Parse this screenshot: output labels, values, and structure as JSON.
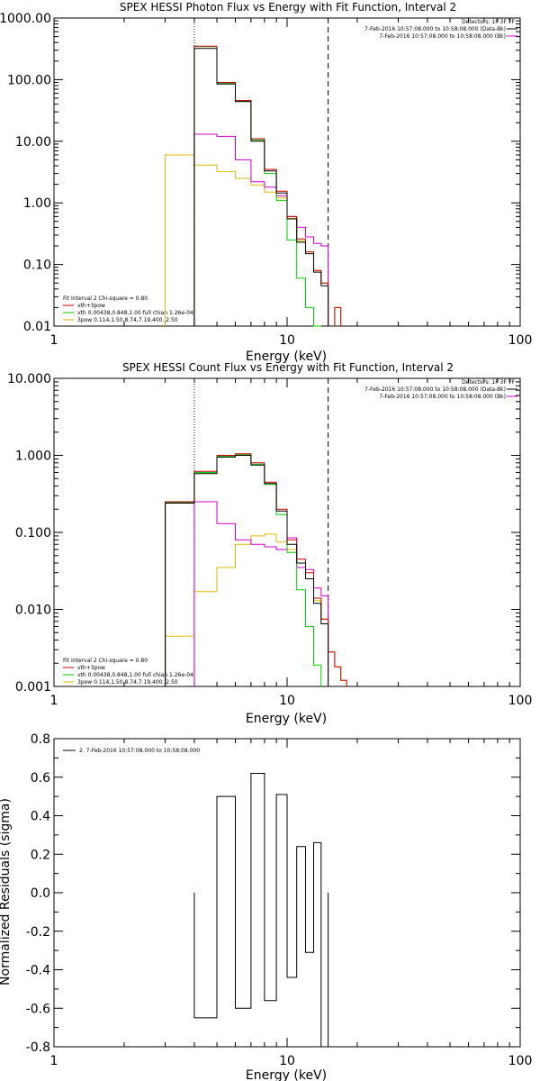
{
  "chart_data": [
    {
      "type": "line",
      "title": "SPEX HESSI Photon Flux vs Energy with Fit Function, Interval 2",
      "xlabel": "Energy (keV)",
      "ylabel": "",
      "xscale": "log",
      "yscale": "log",
      "xlim": [
        1,
        100
      ],
      "ylim": [
        0.01,
        1000
      ],
      "x_tick_labels": [
        "1",
        "10",
        "100"
      ],
      "y_tick_labels": [
        "0.01",
        "0.10",
        "1.00",
        "10.00",
        "100.00",
        "1000.00"
      ],
      "legend_top_right": {
        "header": "Detectors: 1F 3F 7F",
        "entries": [
          {
            "label": "7-Feb-2016 10:57:08.000 to 10:58:08.000 (Data-Bk)",
            "color": "#000000"
          },
          {
            "label": "7-Feb-2016 10:57:08.000 to 10:58:08.000 (Bk)",
            "color": "#cc00cc"
          }
        ]
      },
      "legend_bottom_left": {
        "header": "Fit Interval 2   Chi-square = 0.80",
        "entries": [
          {
            "label": "vth+3pow",
            "color": "#cc0000"
          },
          {
            "label": "vth 0.00438,0.848,1.00  full chian 1.26e-04",
            "color": "#00cc00"
          },
          {
            "label": "3pow 0.114,1.50,8.74,7.19,400.,2.50",
            "color": "#ddbb00"
          }
        ]
      },
      "vlines": [
        {
          "x": 4,
          "style": "dotted",
          "color": "#000000"
        },
        {
          "x": 15,
          "style": "dashed",
          "color": "#000000"
        }
      ],
      "bin_edges": [
        3,
        4,
        5,
        6,
        7,
        8,
        9,
        10,
        11,
        12,
        13,
        14,
        15,
        16,
        17,
        18
      ],
      "series": [
        {
          "key": "data",
          "color": "#000000",
          "values": [
            null,
            320,
            85,
            44,
            10,
            3.3,
            1.45,
            0.55,
            0.23,
            0.15,
            0.075,
            0.045,
            null,
            null,
            null
          ]
        },
        {
          "key": "total",
          "color": "#cc0000",
          "values": [
            null,
            350,
            90,
            46,
            11,
            3.5,
            1.55,
            0.6,
            0.26,
            0.16,
            0.08,
            0.05,
            null,
            0.02,
            null
          ]
        },
        {
          "key": "thermal",
          "color": "#00cc00",
          "values": [
            null,
            345,
            88,
            45,
            10.5,
            3.0,
            1.1,
            0.25,
            0.06,
            0.02,
            0.01,
            null,
            null,
            null,
            null
          ]
        },
        {
          "key": "powerlaw",
          "color": "#ddbb00",
          "values": [
            6.0,
            4.1,
            3.2,
            2.5,
            1.95,
            1.5,
            1.2,
            0.56,
            0.24,
            0.16,
            0.08,
            0.05,
            null,
            0.02,
            null
          ]
        },
        {
          "key": "background",
          "color": "#cc00cc",
          "values": [
            null,
            13,
            12,
            5,
            2.2,
            1.8,
            1.3,
            0.6,
            0.4,
            0.28,
            0.22,
            0.2,
            null,
            null,
            null
          ]
        }
      ]
    },
    {
      "type": "line",
      "title": "SPEX HESSI Count Flux vs Energy with Fit Function, Interval 2",
      "xlabel": "Energy (keV)",
      "ylabel": "",
      "xscale": "log",
      "yscale": "log",
      "xlim": [
        1,
        100
      ],
      "ylim": [
        0.001,
        10
      ],
      "x_tick_labels": [
        "1",
        "10",
        "100"
      ],
      "y_tick_labels": [
        "0.001",
        "0.010",
        "0.100",
        "1.000",
        "10.000"
      ],
      "legend_top_right": {
        "header": "Detectors: 1F 3F 7F",
        "entries": [
          {
            "label": "7-Feb-2016 10:57:08.000 to 10:58:08.000 (Data-Bk)",
            "color": "#000000"
          },
          {
            "label": "7-Feb-2016 10:57:08.000 to 10:58:08.000 (Bk)",
            "color": "#cc00cc"
          }
        ]
      },
      "legend_bottom_left": {
        "header": "Fit Interval 2   Chi-square = 0.80",
        "entries": [
          {
            "label": "vth+3pow",
            "color": "#cc0000"
          },
          {
            "label": "vth 0.00438,0.848,1.00  full chian 1.26e-04",
            "color": "#00cc00"
          },
          {
            "label": "3pow 0.114,1.50,8.74,7.19,400.,2.50",
            "color": "#ddbb00"
          }
        ]
      },
      "vlines": [
        {
          "x": 4,
          "style": "dotted",
          "color": "#000000"
        },
        {
          "x": 15,
          "style": "dashed",
          "color": "#000000"
        }
      ],
      "bin_edges": [
        3,
        4,
        5,
        6,
        7,
        8,
        9,
        10,
        11,
        12,
        13,
        14,
        15,
        16,
        17,
        18
      ],
      "series": [
        {
          "key": "data",
          "color": "#000000",
          "values": [
            0.24,
            0.58,
            0.95,
            1.0,
            0.75,
            0.43,
            0.19,
            0.07,
            0.04,
            0.025,
            0.012,
            0.0065,
            null,
            null,
            null
          ]
        },
        {
          "key": "total",
          "color": "#cc0000",
          "values": [
            0.25,
            0.62,
            1.0,
            1.05,
            0.8,
            0.45,
            0.2,
            0.08,
            0.045,
            0.03,
            0.014,
            0.0075,
            0.0028,
            0.0018,
            0.0012
          ]
        },
        {
          "key": "thermal",
          "color": "#00cc00",
          "values": [
            0.245,
            0.6,
            0.97,
            1.02,
            0.77,
            0.42,
            0.17,
            0.055,
            0.018,
            0.006,
            0.0019,
            null,
            null,
            null,
            null
          ]
        },
        {
          "key": "powerlaw",
          "color": "#ddbb00",
          "values": [
            0.0045,
            0.017,
            0.035,
            0.07,
            0.09,
            0.095,
            0.075,
            0.06,
            0.04,
            0.025,
            0.013,
            0.0075,
            0.0028,
            0.0018,
            0.0012
          ]
        },
        {
          "key": "background",
          "color": "#cc00cc",
          "values": [
            null,
            0.25,
            0.13,
            0.08,
            0.07,
            0.065,
            0.06,
            0.085,
            0.035,
            0.033,
            0.019,
            0.015,
            null,
            null,
            null
          ]
        }
      ]
    },
    {
      "type": "line",
      "title": "",
      "xlabel": "Energy (keV)",
      "ylabel": "Normalized Residuals (sigma)",
      "xscale": "log",
      "yscale": "linear",
      "xlim": [
        1,
        100
      ],
      "ylim": [
        -0.8,
        0.8
      ],
      "x_tick_labels": [
        "1",
        "10",
        "100"
      ],
      "y_tick_labels": [
        "-0.8",
        "-0.6",
        "-0.4",
        "-0.2",
        "0.0",
        "0.2",
        "0.4",
        "0.6",
        "0.8"
      ],
      "legend_top_left": {
        "entries": [
          {
            "label": "2.  7-Feb-2016 10:57:08.000 to 10:58:08.000",
            "color": "#000000"
          }
        ]
      },
      "bin_edges": [
        4,
        5,
        6,
        7,
        8,
        9,
        10,
        11,
        12,
        13,
        14,
        15
      ],
      "series": [
        {
          "key": "residuals",
          "color": "#000000",
          "values": [
            -0.65,
            0.5,
            -0.6,
            0.62,
            -0.56,
            0.51,
            -0.44,
            0.24,
            -0.31,
            0.26,
            -0.84
          ]
        }
      ]
    }
  ]
}
